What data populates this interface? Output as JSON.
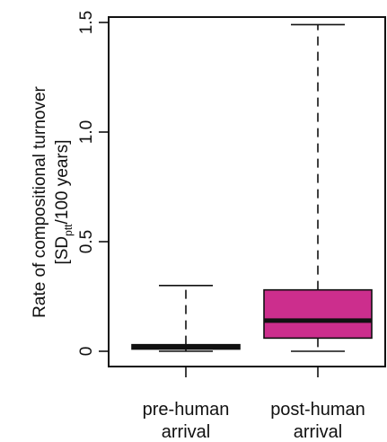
{
  "chart_data": {
    "type": "boxplot",
    "ylabel_line1": "Rate of compositional turnover",
    "ylabel_line2_prefix": "[SD",
    "ylabel_line2_sub": "ptt",
    "ylabel_line2_suffix": "/100 years]",
    "ylim": [
      0,
      1.5
    ],
    "yticks": [
      0,
      0.5,
      1.0,
      1.5
    ],
    "ytick_labels": [
      "0",
      "0.5",
      "1.0",
      "1.5"
    ],
    "categories": [
      {
        "line1": "pre-human",
        "line2": "arrival"
      },
      {
        "line1": "post-human",
        "line2": "arrival"
      }
    ],
    "boxes": [
      {
        "min": 0.0,
        "q1": 0.01,
        "median": 0.02,
        "q3": 0.03,
        "max": 0.3,
        "color": "#111111"
      },
      {
        "min": 0.0,
        "q1": 0.06,
        "median": 0.14,
        "q3": 0.28,
        "max": 1.49,
        "color": "#cc2e8d"
      }
    ]
  }
}
